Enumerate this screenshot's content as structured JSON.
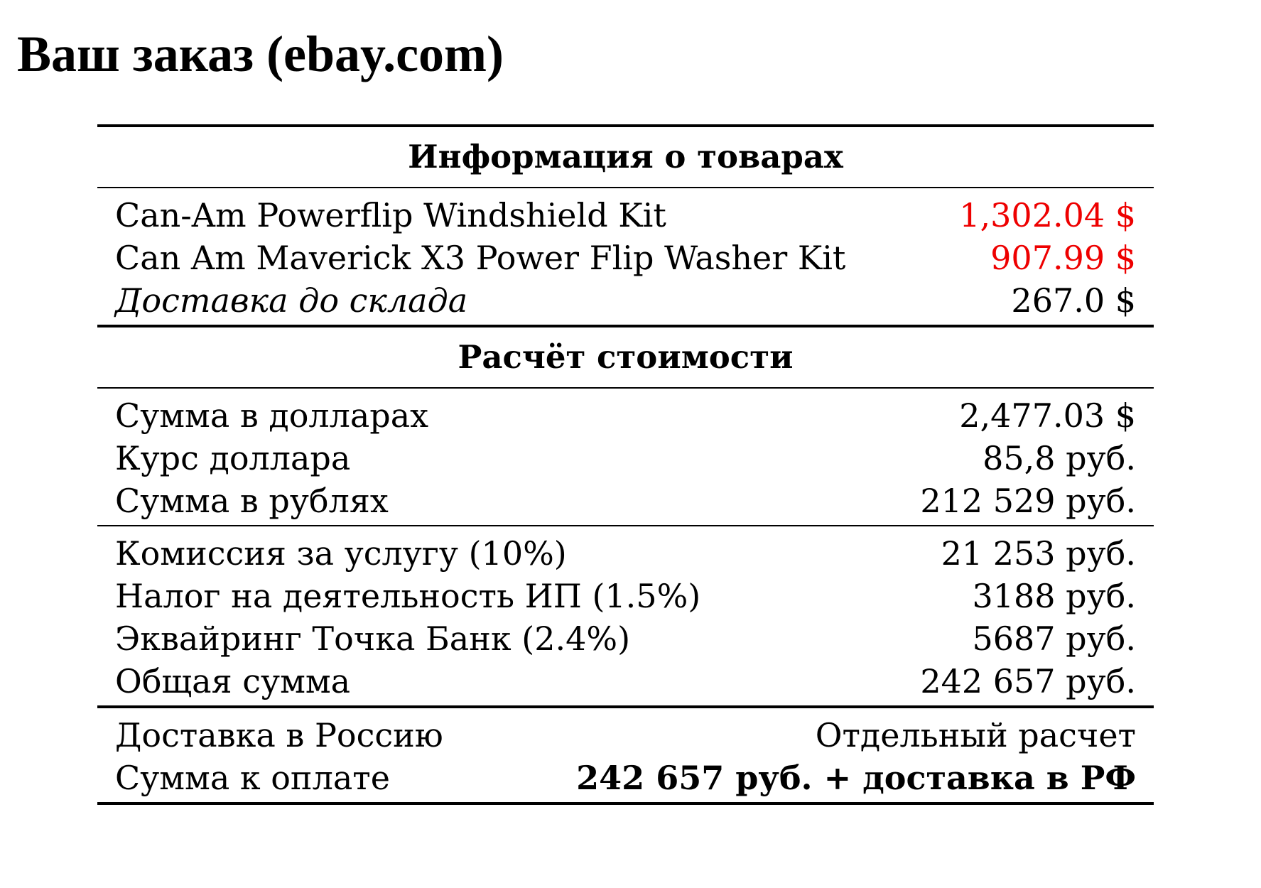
{
  "title": "Ваш заказ (ebay.com)",
  "colors": {
    "price_highlight": "#ee0000",
    "text": "#000000",
    "rules": "#000000"
  },
  "products": {
    "header": "Информация о товарах",
    "items": [
      {
        "label": "Can-Am Powerflip Windshield Kit",
        "value": "1,302.04 $"
      },
      {
        "label": "Can Am Maverick X3 Power Flip Washer Kit",
        "value": "907.99 $"
      }
    ],
    "shipping": {
      "label": "Доставка до склада",
      "value": "267.0 $"
    }
  },
  "calculation": {
    "header": "Расчёт стоимости",
    "conversion": [
      {
        "label": "Сумма в долларах",
        "value": "2,477.03 $"
      },
      {
        "label": "Курс доллара",
        "value": "85,8 руб."
      },
      {
        "label": "Сумма в рублях",
        "value": "212 529 руб."
      }
    ],
    "fees": [
      {
        "label": "Комиссия за услугу (10%)",
        "value": "21 253 руб."
      },
      {
        "label": "Налог на деятельность ИП (1.5%)",
        "value": "3188 руб."
      },
      {
        "label": "Эквайринг Точка Банк (2.4%)",
        "value": "5687 руб."
      },
      {
        "label": "Общая сумма",
        "value": "242 657 руб."
      }
    ],
    "final": [
      {
        "label": "Доставка в Россию",
        "value": "Отдельный расчет"
      },
      {
        "label": "Сумма к оплате",
        "value": "242 657 руб. + доставка в РФ"
      }
    ]
  }
}
